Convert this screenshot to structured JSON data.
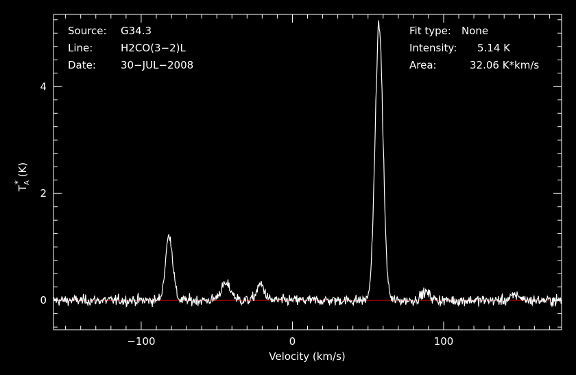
{
  "info_left": {
    "source_label": "Source:",
    "source_value": "G34.3",
    "line_label": "Line:",
    "line_value": "H2CO(3−2)L",
    "date_label": "Date:",
    "date_value": "30−JUL−2008"
  },
  "info_right": {
    "fit_label": "Fit type:",
    "fit_value": "None",
    "intensity_label": "Intensity:",
    "intensity_value": "5.14 K",
    "area_label": "Area:",
    "area_value": "32.06 K*km/s"
  },
  "colors": {
    "background": "#000000",
    "spectrum": "#ffffff",
    "baseline": "#cc0000",
    "axes": "#ffffff"
  },
  "chart_data": {
    "type": "line",
    "xlabel": "Velocity (km/s)",
    "ylabel_main": "T",
    "ylabel_sup": "*",
    "ylabel_sub": "A",
    "ylabel_unit": " (K)",
    "xlim": [
      -158,
      178
    ],
    "ylim": [
      -0.55,
      5.35
    ],
    "xticks": [
      -100,
      0,
      100
    ],
    "xtick_labels": [
      "−100",
      "0",
      "100"
    ],
    "yticks": [
      0,
      2,
      4
    ],
    "ytick_labels": [
      "0",
      "2",
      "4"
    ],
    "baseline_y": 0,
    "noise_rms": 0.07,
    "peaks": [
      {
        "center": 57.3,
        "amplitude": 5.14,
        "sigma": 2.6
      },
      {
        "center": -81.5,
        "amplitude": 1.22,
        "sigma": 2.4
      },
      {
        "center": -44.0,
        "amplitude": 0.3,
        "sigma": 3.5
      },
      {
        "center": -21.0,
        "amplitude": 0.3,
        "sigma": 2.5
      },
      {
        "center": 88.0,
        "amplitude": 0.15,
        "sigma": 3.0
      },
      {
        "center": 148.0,
        "amplitude": 0.1,
        "sigma": 3.0
      }
    ]
  }
}
